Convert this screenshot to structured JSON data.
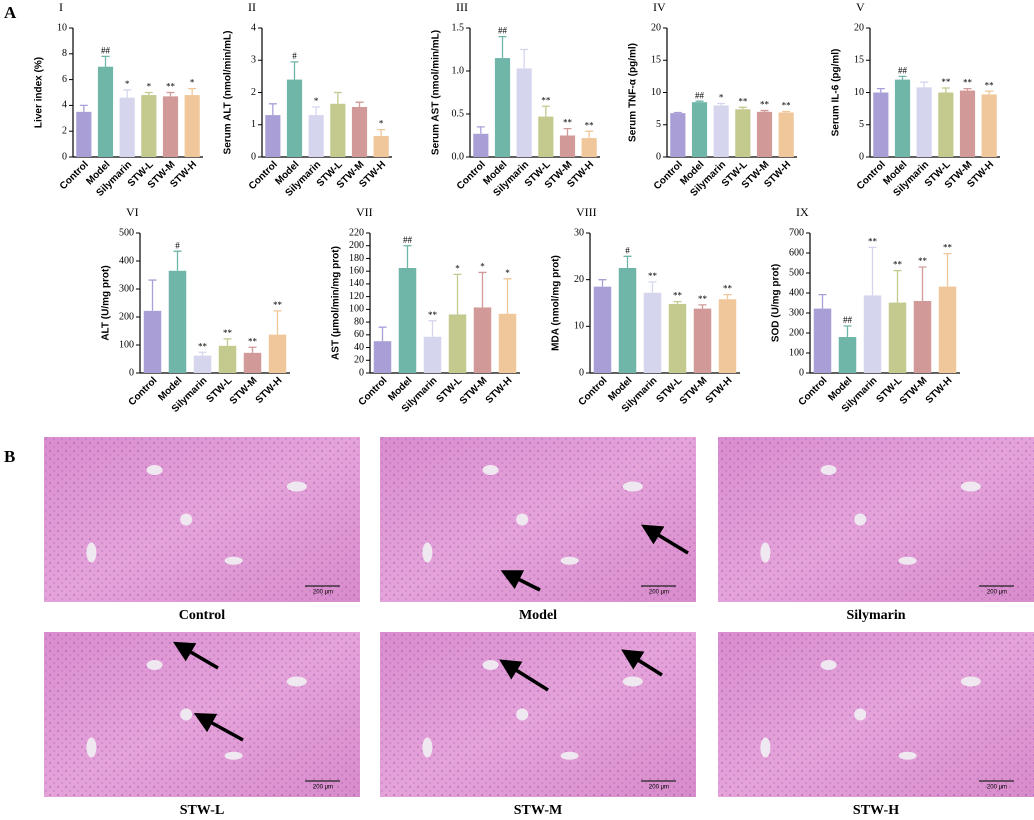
{
  "panel_labels": [
    "A",
    "B"
  ],
  "chart_data": [
    {
      "type": "bar",
      "title": "I",
      "ylabel": "Liver index (%)",
      "categories": [
        "Control",
        "Model",
        "Silymarin",
        "STW-L",
        "STW-M",
        "STW-H"
      ],
      "colors": [
        "#a99fd6",
        "#6fb5a8",
        "#d5d6ee",
        "#c4c98e",
        "#d19a98",
        "#efc79a"
      ],
      "values": [
        3.5,
        7.0,
        4.6,
        4.8,
        4.7,
        4.8
      ],
      "errors": [
        0.5,
        0.8,
        0.6,
        0.2,
        0.3,
        0.5
      ],
      "sig_labels": [
        null,
        "##",
        "*",
        "*",
        "**",
        "*"
      ],
      "ylim": [
        0,
        10
      ],
      "yticks": [
        0,
        2,
        4,
        6,
        8,
        10
      ]
    },
    {
      "type": "bar",
      "title": "II",
      "ylabel": "Serum ALT (nmol/min/mL)",
      "categories": [
        "Control",
        "Model",
        "Silymarin",
        "STW-L",
        "STW-M",
        "STW-H"
      ],
      "colors": [
        "#a99fd6",
        "#6fb5a8",
        "#d5d6ee",
        "#c4c98e",
        "#d19a98",
        "#efc79a"
      ],
      "values": [
        1.3,
        2.4,
        1.3,
        1.65,
        1.55,
        0.65
      ],
      "errors": [
        0.35,
        0.55,
        0.25,
        0.35,
        0.15,
        0.2
      ],
      "sig_labels": [
        null,
        "#",
        "*",
        null,
        null,
        "*"
      ],
      "ylim": [
        0,
        4
      ],
      "yticks": [
        0,
        1,
        2,
        3,
        4
      ]
    },
    {
      "type": "bar",
      "title": "III",
      "ylabel": "Serum AST (nmol/min/mL)",
      "categories": [
        "Control",
        "Model",
        "Silymarin",
        "STW-L",
        "STW-M",
        "STW-H"
      ],
      "colors": [
        "#a99fd6",
        "#6fb5a8",
        "#d5d6ee",
        "#c4c98e",
        "#d19a98",
        "#efc79a"
      ],
      "values": [
        0.27,
        1.15,
        1.03,
        0.47,
        0.25,
        0.22
      ],
      "errors": [
        0.08,
        0.25,
        0.22,
        0.12,
        0.08,
        0.08
      ],
      "sig_labels": [
        null,
        "##",
        null,
        "**",
        "**",
        "**"
      ],
      "ylim": [
        0,
        1.5
      ],
      "yticks": [
        {
          "value": 0,
          "label": "0.0"
        },
        0.5,
        {
          "value": 1,
          "label": "1.0"
        },
        1.5
      ]
    },
    {
      "type": "bar",
      "title": "IV",
      "ylabel": "Serum TNF-α (pg/ml)",
      "categories": [
        "Control",
        "Model",
        "Silymarin",
        "STW-L",
        "STW-M",
        "STW-H"
      ],
      "colors": [
        "#a99fd6",
        "#6fb5a8",
        "#d5d6ee",
        "#c4c98e",
        "#d19a98",
        "#efc79a"
      ],
      "values": [
        6.8,
        8.5,
        8.0,
        7.4,
        7.0,
        6.9
      ],
      "errors": [
        0.1,
        0.15,
        0.3,
        0.3,
        0.2,
        0.15
      ],
      "sig_labels": [
        null,
        "##",
        "*",
        "**",
        "**",
        "**"
      ],
      "ylim": [
        0,
        20
      ],
      "yticks": [
        0,
        5,
        10,
        15,
        20
      ]
    },
    {
      "type": "bar",
      "title": "V",
      "ylabel": "Serum IL-6 (pg/ml)",
      "categories": [
        "Control",
        "Model",
        "Silymarin",
        "STW-L",
        "STW-M",
        "STW-H"
      ],
      "colors": [
        "#a99fd6",
        "#6fb5a8",
        "#d5d6ee",
        "#c4c98e",
        "#d19a98",
        "#efc79a"
      ],
      "values": [
        10.0,
        12.0,
        10.8,
        10.0,
        10.3,
        9.7
      ],
      "errors": [
        0.6,
        0.5,
        0.8,
        0.7,
        0.3,
        0.5
      ],
      "sig_labels": [
        null,
        "##",
        null,
        "**",
        "**",
        "**"
      ],
      "ylim": [
        0,
        20
      ],
      "yticks": [
        0,
        5,
        10,
        15,
        20
      ]
    },
    {
      "type": "bar",
      "title": "VI",
      "ylabel": "ALT (U/mg prot)",
      "categories": [
        "Control",
        "Model",
        "Silymarin",
        "STW-L",
        "STW-M",
        "STW-H"
      ],
      "colors": [
        "#a99fd6",
        "#6fb5a8",
        "#d5d6ee",
        "#c4c98e",
        "#d19a98",
        "#efc79a"
      ],
      "values": [
        222,
        365,
        62,
        97,
        72,
        137
      ],
      "errors": [
        110,
        70,
        12,
        25,
        20,
        85
      ],
      "sig_labels": [
        null,
        "#",
        "**",
        "**",
        "**",
        "**"
      ],
      "ylim": [
        0,
        500
      ],
      "yticks": [
        0,
        100,
        200,
        300,
        400,
        500
      ]
    },
    {
      "type": "bar",
      "title": "VII",
      "ylabel": "AST (μmol/min/mg prot)",
      "categories": [
        "Control",
        "Model",
        "Silymarin",
        "STW-L",
        "STW-M",
        "STW-H"
      ],
      "colors": [
        "#a99fd6",
        "#6fb5a8",
        "#d5d6ee",
        "#c4c98e",
        "#d19a98",
        "#efc79a"
      ],
      "values": [
        50,
        165,
        57,
        92,
        103,
        93
      ],
      "errors": [
        22,
        35,
        25,
        63,
        55,
        55
      ],
      "sig_labels": [
        null,
        "##",
        "**",
        "*",
        "*",
        "*"
      ],
      "ylim": [
        0,
        220
      ],
      "yticks": [
        0,
        20,
        40,
        60,
        80,
        100,
        120,
        140,
        160,
        180,
        200,
        220
      ]
    },
    {
      "type": "bar",
      "title": "VIII",
      "ylabel": "MDA (nmol/mg prot)",
      "categories": [
        "Control",
        "Model",
        "Silymarin",
        "STW-L",
        "STW-M",
        "STW-H"
      ],
      "colors": [
        "#a99fd6",
        "#6fb5a8",
        "#d5d6ee",
        "#c4c98e",
        "#d19a98",
        "#efc79a"
      ],
      "values": [
        18.5,
        22.5,
        17.2,
        14.8,
        13.8,
        15.8
      ],
      "errors": [
        1.5,
        2.5,
        2.3,
        0.5,
        0.8,
        1.0
      ],
      "sig_labels": [
        null,
        "#",
        "**",
        "**",
        "**",
        "**"
      ],
      "ylim": [
        0,
        30
      ],
      "yticks": [
        0,
        10,
        20,
        30
      ]
    },
    {
      "type": "bar",
      "title": "IX",
      "ylabel": "SOD (U/mg prot)",
      "categories": [
        "Control",
        "Model",
        "Silymarin",
        "STW-L",
        "STW-M",
        "STW-H"
      ],
      "colors": [
        "#a99fd6",
        "#6fb5a8",
        "#d5d6ee",
        "#c4c98e",
        "#d19a98",
        "#efc79a"
      ],
      "values": [
        322,
        180,
        388,
        352,
        360,
        432
      ],
      "errors": [
        70,
        55,
        240,
        160,
        170,
        165
      ],
      "sig_labels": [
        null,
        "##",
        "**",
        "**",
        "**",
        "**"
      ],
      "ylim": [
        0,
        700
      ],
      "yticks": [
        0,
        100,
        200,
        300,
        400,
        500,
        600,
        700
      ]
    }
  ],
  "histology": {
    "labels": [
      "Control",
      "Model",
      "Silymarin",
      "STW-L",
      "STW-M",
      "STW-H"
    ],
    "scale_bar": "200 μm"
  }
}
